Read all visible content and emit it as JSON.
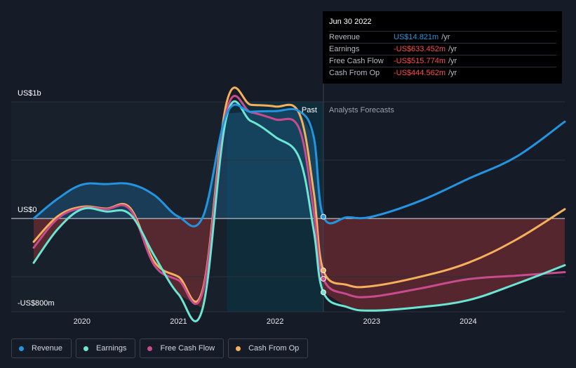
{
  "tooltip": {
    "date": "Jun 30 2022",
    "rows": [
      {
        "label": "Revenue",
        "value": "US$14.821m",
        "unit": "/yr",
        "color": "#2394df"
      },
      {
        "label": "Earnings",
        "value": "-US$633.452m",
        "unit": "/yr",
        "color": "#ff4b4b"
      },
      {
        "label": "Free Cash Flow",
        "value": "-US$515.774m",
        "unit": "/yr",
        "color": "#ff4b4b"
      },
      {
        "label": "Cash From Op",
        "value": "-US$444.562m",
        "unit": "/yr",
        "color": "#ff4b4b"
      }
    ]
  },
  "legend": [
    {
      "label": "Revenue",
      "color": "#2394df"
    },
    {
      "label": "Earnings",
      "color": "#6ce5d2"
    },
    {
      "label": "Free Cash Flow",
      "color": "#c84b8e"
    },
    {
      "label": "Cash From Op",
      "color": "#f5b05c"
    }
  ],
  "chart_data": {
    "type": "line",
    "ylabels": {
      "top": "US$1b",
      "zero": "US$0",
      "bottom": "-US$800m"
    },
    "ylim": [
      -800,
      1000
    ],
    "xlim": [
      2019.5,
      2025.0
    ],
    "x_ticks": [
      2020,
      2021,
      2022,
      2023,
      2024
    ],
    "past_label": "Past",
    "forecast_label": "Analysts Forecasts",
    "past_end_x": 2022.5,
    "highlight_start_x": 2021.5,
    "series": [
      {
        "name": "Revenue",
        "color": "#2394df",
        "points": [
          [
            2019.5,
            0
          ],
          [
            2019.75,
            170
          ],
          [
            2020.0,
            290
          ],
          [
            2020.25,
            295
          ],
          [
            2020.5,
            295
          ],
          [
            2020.75,
            200
          ],
          [
            2021.0,
            15
          ],
          [
            2021.25,
            10
          ],
          [
            2021.5,
            900
          ],
          [
            2021.75,
            915
          ],
          [
            2022.0,
            920
          ],
          [
            2022.25,
            920
          ],
          [
            2022.4,
            700
          ],
          [
            2022.5,
            15
          ],
          [
            2022.75,
            10
          ],
          [
            2023.0,
            15
          ],
          [
            2023.5,
            150
          ],
          [
            2024.0,
            340
          ],
          [
            2024.5,
            530
          ],
          [
            2025.0,
            830
          ]
        ]
      },
      {
        "name": "Earnings",
        "color": "#6ce5d2",
        "points": [
          [
            2019.5,
            -380
          ],
          [
            2019.75,
            -90
          ],
          [
            2020.0,
            80
          ],
          [
            2020.25,
            60
          ],
          [
            2020.5,
            35
          ],
          [
            2020.75,
            -320
          ],
          [
            2021.0,
            -650
          ],
          [
            2021.25,
            -770
          ],
          [
            2021.5,
            880
          ],
          [
            2021.75,
            835
          ],
          [
            2022.0,
            700
          ],
          [
            2022.25,
            520
          ],
          [
            2022.4,
            -100
          ],
          [
            2022.5,
            -633
          ],
          [
            2022.75,
            -760
          ],
          [
            2023.0,
            -790
          ],
          [
            2023.5,
            -760
          ],
          [
            2024.0,
            -700
          ],
          [
            2024.5,
            -560
          ],
          [
            2025.0,
            -400
          ]
        ]
      },
      {
        "name": "Free Cash Flow",
        "color": "#c84b8e",
        "points": [
          [
            2019.5,
            -250
          ],
          [
            2019.75,
            0
          ],
          [
            2020.0,
            90
          ],
          [
            2020.25,
            80
          ],
          [
            2020.5,
            75
          ],
          [
            2020.75,
            -400
          ],
          [
            2021.0,
            -530
          ],
          [
            2021.25,
            -630
          ],
          [
            2021.5,
            930
          ],
          [
            2021.75,
            910
          ],
          [
            2022.0,
            850
          ],
          [
            2022.25,
            770
          ],
          [
            2022.4,
            60
          ],
          [
            2022.5,
            -516
          ],
          [
            2022.75,
            -650
          ],
          [
            2023.0,
            -670
          ],
          [
            2023.5,
            -600
          ],
          [
            2024.0,
            -520
          ],
          [
            2024.5,
            -490
          ],
          [
            2025.0,
            -460
          ]
        ]
      },
      {
        "name": "Cash From Op",
        "color": "#f5b05c",
        "points": [
          [
            2019.5,
            -200
          ],
          [
            2019.75,
            20
          ],
          [
            2020.0,
            100
          ],
          [
            2020.25,
            85
          ],
          [
            2020.5,
            90
          ],
          [
            2020.75,
            -370
          ],
          [
            2021.0,
            -500
          ],
          [
            2021.25,
            -610
          ],
          [
            2021.5,
            1000
          ],
          [
            2021.75,
            975
          ],
          [
            2022.0,
            960
          ],
          [
            2022.25,
            900
          ],
          [
            2022.4,
            230
          ],
          [
            2022.5,
            -445
          ],
          [
            2022.75,
            -570
          ],
          [
            2023.0,
            -580
          ],
          [
            2023.5,
            -500
          ],
          [
            2024.0,
            -380
          ],
          [
            2024.5,
            -180
          ],
          [
            2025.0,
            80
          ]
        ]
      }
    ]
  }
}
